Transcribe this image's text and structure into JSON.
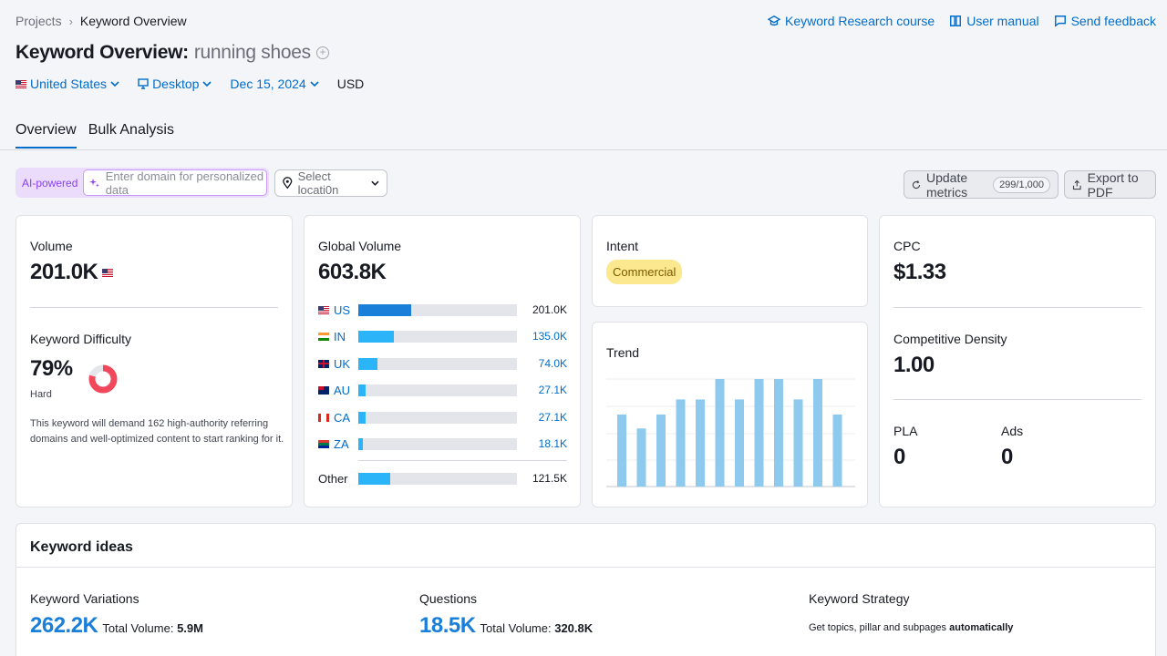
{
  "breadcrumb": {
    "root": "Projects",
    "current": "Keyword Overview"
  },
  "top_links": [
    {
      "label": "Keyword Research course",
      "icon": "graduation-cap-icon"
    },
    {
      "label": "User manual",
      "icon": "book-icon"
    },
    {
      "label": "Send feedback",
      "icon": "feedback-icon"
    }
  ],
  "title": {
    "prefix": "Keyword Overview:",
    "keyword": "running shoes"
  },
  "filters": {
    "country": "United States",
    "device": "Desktop",
    "date": "Dec 15, 2024",
    "currency": "USD"
  },
  "tabs": [
    {
      "label": "Overview",
      "active": true
    },
    {
      "label": "Bulk Analysis",
      "active": false
    }
  ],
  "toolbar": {
    "ai_label": "AI-powered",
    "domain_placeholder": "Enter domain for personalized data",
    "location_placeholder": "Select locati0n",
    "update_label": "Update metrics",
    "update_count": "299/1,000",
    "export_label": "Export to PDF"
  },
  "volume": {
    "label": "Volume",
    "value": "201.0K"
  },
  "difficulty": {
    "label": "Keyword Difficulty",
    "value": "79%",
    "level": "Hard",
    "percent": 79,
    "note": "This keyword will demand 162 high-authority referring domains and well-optimized content to start ranking for it."
  },
  "global_volume": {
    "label": "Global Volume",
    "value": "603.8K",
    "countries": [
      {
        "code": "US",
        "value": "201.0K",
        "raw": 201.0
      },
      {
        "code": "IN",
        "value": "135.0K",
        "raw": 135.0
      },
      {
        "code": "UK",
        "value": "74.0K",
        "raw": 74.0
      },
      {
        "code": "AU",
        "value": "27.1K",
        "raw": 27.1
      },
      {
        "code": "CA",
        "value": "27.1K",
        "raw": 27.1
      },
      {
        "code": "ZA",
        "value": "18.1K",
        "raw": 18.1
      }
    ],
    "other": {
      "label": "Other",
      "value": "121.5K",
      "raw": 121.5
    }
  },
  "intent": {
    "label": "Intent",
    "value": "Commercial"
  },
  "trend": {
    "label": "Trend",
    "values": [
      0.67,
      0.54,
      0.67,
      0.81,
      0.81,
      1.0,
      0.81,
      1.0,
      1.0,
      0.81,
      1.0,
      0.67
    ]
  },
  "cpc": {
    "label": "CPC",
    "value": "$1.33"
  },
  "density": {
    "label": "Competitive Density",
    "value": "1.00"
  },
  "pla": {
    "label": "PLA",
    "value": "0"
  },
  "ads": {
    "label": "Ads",
    "value": "0"
  },
  "ideas": {
    "title": "Keyword ideas",
    "variations": {
      "label": "Keyword Variations",
      "value": "262.2K",
      "tv_label": "Total Volume:",
      "tv_value": "5.9M"
    },
    "questions": {
      "label": "Questions",
      "value": "18.5K",
      "tv_label": "Total Volume:",
      "tv_value": "320.8K"
    },
    "strategy": {
      "label": "Keyword Strategy",
      "text": "Get topics, pillar and subpages",
      "emphasis": "automatically"
    }
  },
  "colors": {
    "accent": "#006dca",
    "bar_us": "#1a7fd9",
    "bar": "#2bb4f7",
    "trend": "#8ec9ee",
    "kd": "#f1485c",
    "intent": "#fce88f"
  }
}
